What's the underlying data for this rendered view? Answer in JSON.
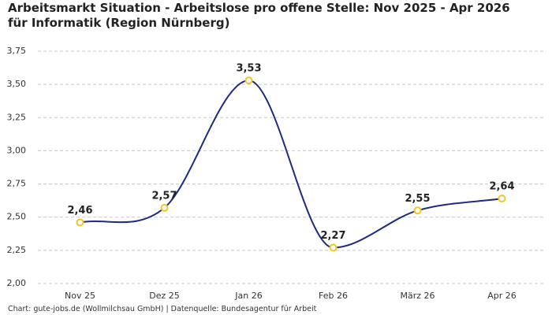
{
  "chart_data": {
    "type": "line",
    "title": "Arbeitsmarkt Situation - Arbeitslose pro offene Stelle: Nov 2025 - Apr 2026 für Informatik (Region Nürnberg)",
    "source": "Chart: gute-jobs.de (Wollmilchsau GmbH) | Datenquelle: Bundesagentur für Arbeit",
    "categories": [
      "Nov 25",
      "Dez 25",
      "Jan 26",
      "Feb 26",
      "März 26",
      "Apr 26"
    ],
    "values": [
      2.46,
      2.57,
      3.53,
      2.27,
      2.55,
      2.64
    ],
    "value_labels": [
      "2,46",
      "2,57",
      "3,53",
      "2,27",
      "2,55",
      "2,64"
    ],
    "color": "#1f2a80",
    "marker_color": "#f2c523",
    "ylim": [
      2.0,
      3.75
    ],
    "yticks": [
      {
        "value": 2.0,
        "label": "2,00"
      },
      {
        "value": 2.25,
        "label": "2,25"
      },
      {
        "value": 2.5,
        "label": "2,50"
      },
      {
        "value": 2.75,
        "label": "2,75"
      },
      {
        "value": 3.0,
        "label": "3,00"
      },
      {
        "value": 3.25,
        "label": "3,25"
      },
      {
        "value": 3.5,
        "label": "3,50"
      },
      {
        "value": 3.75,
        "label": "3,75"
      }
    ],
    "grid": true
  }
}
